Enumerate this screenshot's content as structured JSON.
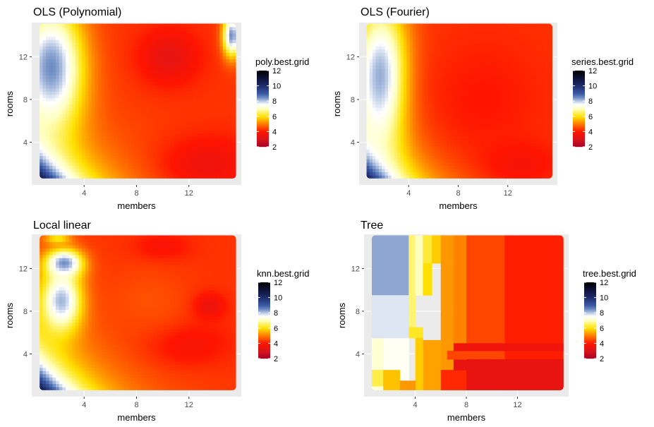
{
  "chart_data": [
    {
      "type": "heatmap",
      "title": "OLS (Polynomial)",
      "xlabel": "members",
      "ylabel": "rooms",
      "xticks": [
        4,
        8,
        12
      ],
      "yticks": [
        4,
        8,
        12
      ],
      "xlim": [
        0,
        16
      ],
      "ylim": [
        0,
        15.2
      ],
      "legend": {
        "title": "poly.best.grid",
        "ticks": [
          2,
          4,
          6,
          8,
          10,
          12
        ],
        "position": "right"
      },
      "surface": {
        "style": "smooth",
        "blobs": [
          {
            "x": 10.5,
            "y": 12,
            "value": 3.4,
            "sx": 2.2,
            "sy": 2.5
          },
          {
            "x": 13.5,
            "y": 2,
            "value": 3.6,
            "sx": 3.5,
            "sy": 2.5
          },
          {
            "x": 15.3,
            "y": 14,
            "value": 8.5,
            "sx": 0.7,
            "sy": 2
          },
          {
            "x": 1.5,
            "y": 11,
            "value": 8.5,
            "sx": 2.5,
            "sy": 6
          }
        ]
      }
    },
    {
      "type": "heatmap",
      "title": "OLS (Fourier)",
      "xlabel": "members",
      "ylabel": "rooms",
      "xticks": [
        4,
        8,
        12
      ],
      "yticks": [
        4,
        8,
        12
      ],
      "xlim": [
        0,
        16
      ],
      "ylim": [
        0,
        15.2
      ],
      "legend": {
        "title": "series.best.grid",
        "ticks": [
          2,
          4,
          6,
          8,
          10,
          12
        ],
        "position": "right"
      },
      "surface": {
        "style": "smooth",
        "blobs": [
          {
            "x": 1.8,
            "y": 10,
            "value": 8.5,
            "sx": 2.2,
            "sy": 7
          },
          {
            "x": 10,
            "y": 8,
            "value": 4.0,
            "sx": 5,
            "sy": 6
          },
          {
            "x": 13,
            "y": 2,
            "value": 3.8,
            "sx": 3,
            "sy": 2
          }
        ]
      }
    },
    {
      "type": "heatmap",
      "title": "Local linear",
      "xlabel": "members",
      "ylabel": "rooms",
      "xticks": [
        4,
        8,
        12
      ],
      "yticks": [
        4,
        8,
        12
      ],
      "xlim": [
        0,
        16
      ],
      "ylim": [
        0,
        15.2
      ],
      "legend": {
        "title": "knn.best.grid",
        "ticks": [
          2,
          4,
          6,
          8,
          10,
          12
        ],
        "position": "right"
      },
      "surface": {
        "style": "smooth",
        "blobs": [
          {
            "x": 2.5,
            "y": 12.5,
            "value": 8.6,
            "sx": 1.4,
            "sy": 1.3
          },
          {
            "x": 2.3,
            "y": 9,
            "value": 8.2,
            "sx": 1.6,
            "sy": 3
          },
          {
            "x": 2,
            "y": 14.8,
            "value": 6.2,
            "sx": 1,
            "sy": 0.5
          },
          {
            "x": 10,
            "y": 14,
            "value": 3.8,
            "sx": 2,
            "sy": 1.2
          },
          {
            "x": 13.5,
            "y": 8.5,
            "value": 3.4,
            "sx": 1.2,
            "sy": 1.2
          },
          {
            "x": 12,
            "y": 5,
            "value": 3.8,
            "sx": 3,
            "sy": 2
          },
          {
            "x": 9,
            "y": 9,
            "value": 4.6,
            "sx": 3,
            "sy": 3
          }
        ]
      }
    },
    {
      "type": "heatmap",
      "title": "Tree",
      "xlabel": "members",
      "ylabel": "rooms",
      "xticks": [
        4,
        8,
        12
      ],
      "yticks": [
        4,
        8,
        12
      ],
      "xlim": [
        0,
        16
      ],
      "ylim": [
        0,
        15.2
      ],
      "legend": {
        "title": "tree.best.grid",
        "ticks": [
          2,
          4,
          6,
          8,
          10,
          12
        ],
        "position": "right"
      },
      "surface": {
        "style": "blocks",
        "cells": [
          [
            0.6,
            3.5,
            5.5,
            15.1,
            8.3
          ],
          [
            3.5,
            4.0,
            6.5,
            15.1,
            6.6
          ],
          [
            4.0,
            4.6,
            9.5,
            15.1,
            7.0
          ],
          [
            4.6,
            5.3,
            12.5,
            15.1,
            6.3
          ],
          [
            4.6,
            5.3,
            9.5,
            12.5,
            6.0
          ],
          [
            5.3,
            6.0,
            12.5,
            15.1,
            5.8
          ],
          [
            6.0,
            7.0,
            0.6,
            15.1,
            5.3
          ],
          [
            7.0,
            8.0,
            0.6,
            15.1,
            5.1
          ],
          [
            8.0,
            11.0,
            0.6,
            15.1,
            4.5
          ],
          [
            11.0,
            15.6,
            0.6,
            15.1,
            4.1
          ],
          [
            0.6,
            1.5,
            0.6,
            5.5,
            7.2
          ],
          [
            1.5,
            3.5,
            0.6,
            5.5,
            7.5
          ],
          [
            0.6,
            3.5,
            5.5,
            9.5,
            7.8
          ],
          [
            3.5,
            4.6,
            5.5,
            6.5,
            6.2
          ],
          [
            4.6,
            6.0,
            0.6,
            5.3,
            5.4
          ],
          [
            4.0,
            4.6,
            0.6,
            5.5,
            5.8
          ],
          [
            0.6,
            1.5,
            1.0,
            2.5,
            6.4
          ],
          [
            1.5,
            2.8,
            0.6,
            2.5,
            5.7
          ],
          [
            2.8,
            4.0,
            0.6,
            1.5,
            5.3
          ],
          [
            6.0,
            8.0,
            0.6,
            2.5,
            4.2
          ],
          [
            8.0,
            15.6,
            0.6,
            2.5,
            3.4
          ],
          [
            7.0,
            15.6,
            2.5,
            3.5,
            3.4
          ],
          [
            6.5,
            8.0,
            3.5,
            4.3,
            4.5
          ],
          [
            7.0,
            15.6,
            4.3,
            5.0,
            3.6
          ]
        ]
      }
    }
  ]
}
